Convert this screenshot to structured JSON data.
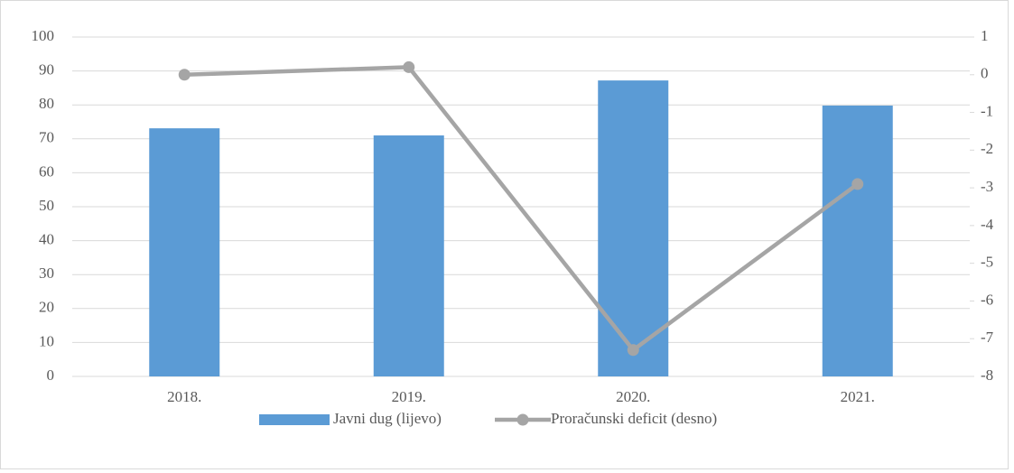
{
  "chart_data": {
    "type": "combo",
    "categories": [
      "2018.",
      "2019.",
      "2020.",
      "2021."
    ],
    "series": [
      {
        "name": "Javni dug (lijevo)",
        "type": "bar",
        "color": "#5b9bd5",
        "values": [
          73.1,
          71.0,
          87.2,
          79.8
        ]
      },
      {
        "name": "Proračunski deficit (desno)",
        "type": "line",
        "axis": "y2",
        "color": "#a5a5a5",
        "values": [
          0.0,
          0.2,
          -7.3,
          -2.9
        ]
      }
    ],
    "ylim": [
      0,
      100
    ],
    "yticks": [
      0,
      10,
      20,
      30,
      40,
      50,
      60,
      70,
      80,
      90,
      100
    ],
    "y2lim": [
      -8,
      1
    ],
    "y2ticks": [
      -8,
      -7,
      -6,
      -5,
      -4,
      -3,
      -2,
      -1,
      0,
      1
    ],
    "grid": true,
    "legend": "bottom"
  }
}
